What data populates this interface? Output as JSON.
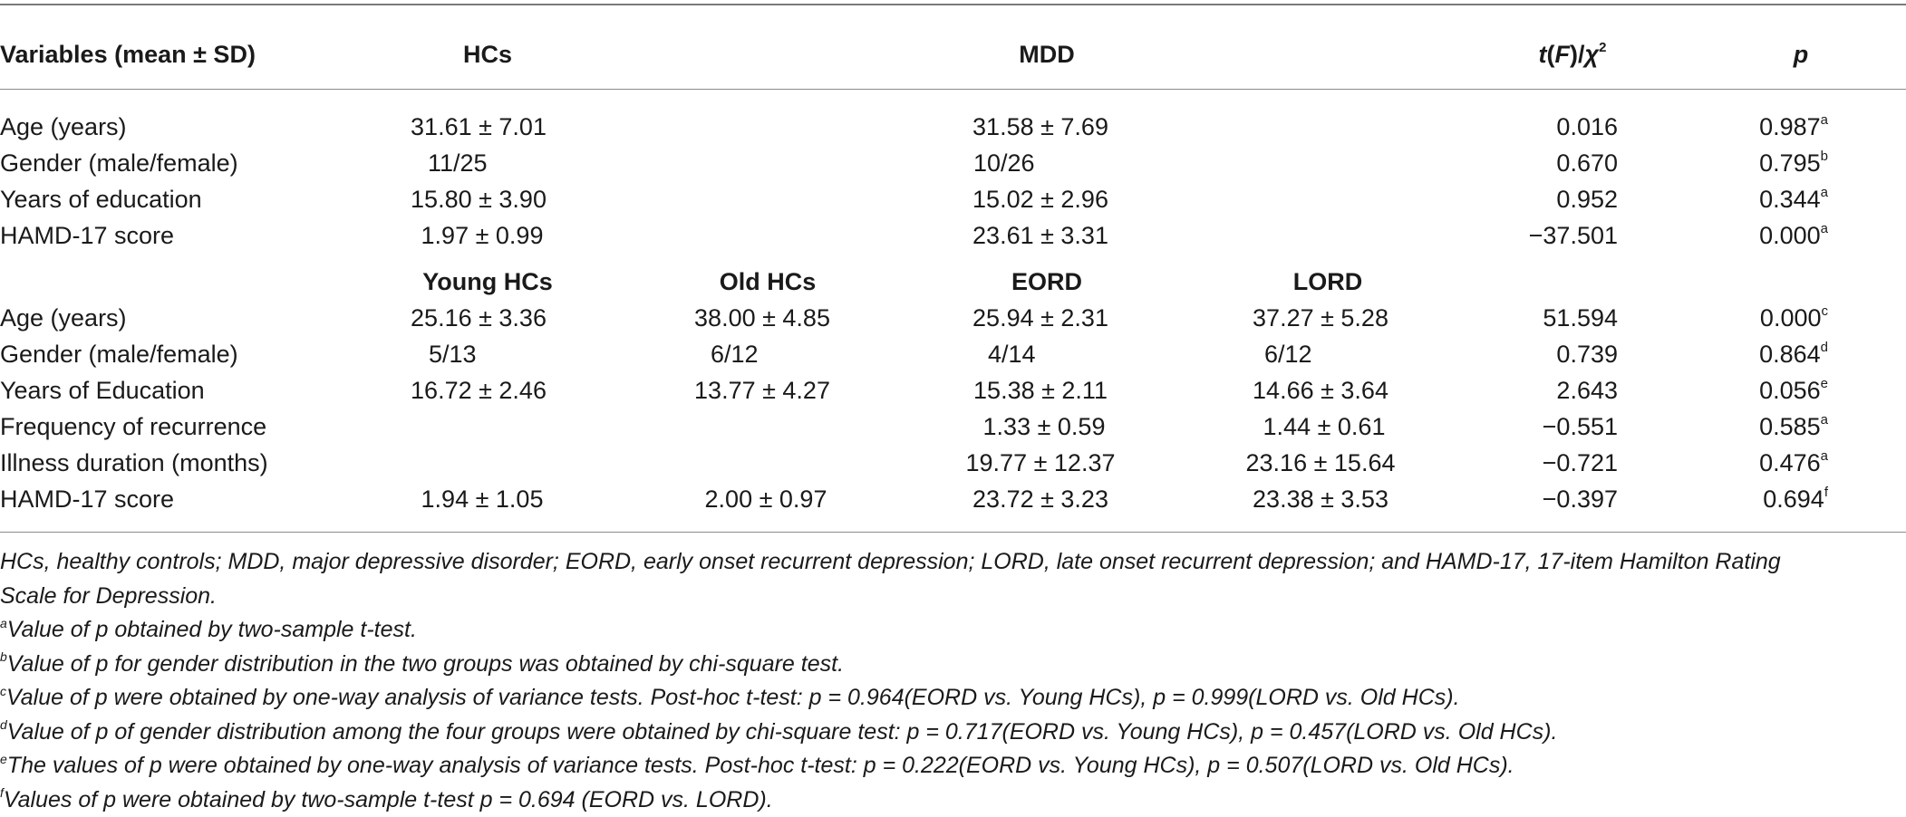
{
  "header": {
    "variables": "Variables (mean ± SD)",
    "hcs": "HCs",
    "mdd": "MDD",
    "stat_t": "t",
    "stat_F": "F",
    "stat_chi": "χ",
    "stat_chi_sup": "2",
    "p": "p"
  },
  "subheader": {
    "young_hcs": "Young HCs",
    "old_hcs": "Old HCs",
    "eord": "EORD",
    "lord": "LORD"
  },
  "section1": [
    {
      "label": "Age (years)",
      "hcs": "31.61 ± 7.01",
      "mdd": "31.58 ± 7.69",
      "stat": "0.016",
      "p": "0.987",
      "sup": "a"
    },
    {
      "label": "Gender (male/female)",
      "hcs": "11/25",
      "mdd": "10/26",
      "stat": "0.670",
      "p": "0.795",
      "sup": "b"
    },
    {
      "label": "Years of education",
      "hcs": "15.80 ± 3.90",
      "mdd": "15.02 ± 2.96",
      "stat": "0.952",
      "p": "0.344",
      "sup": "a"
    },
    {
      "label": "HAMD-17 score",
      "hcs": "1.97 ± 0.99",
      "mdd": "23.61 ± 3.31",
      "stat": "−37.501",
      "p": "0.000",
      "sup": "a"
    }
  ],
  "section2": [
    {
      "label": "Age (years)",
      "young": "25.16 ± 3.36",
      "old": "38.00 ± 4.85",
      "eord": "25.94 ± 2.31",
      "lord": "37.27 ± 5.28",
      "stat": "51.594",
      "p": "0.000",
      "sup": "c"
    },
    {
      "label": "Gender (male/female)",
      "young": "5/13",
      "old": "6/12",
      "eord": "4/14",
      "lord": "6/12",
      "stat": "0.739",
      "p": "0.864",
      "sup": "d"
    },
    {
      "label": "Years of Education",
      "young": "16.72 ± 2.46",
      "old": "13.77 ± 4.27",
      "eord": "15.38 ± 2.11",
      "lord": "14.66 ± 3.64",
      "stat": "2.643",
      "p": "0.056",
      "sup": "e"
    },
    {
      "label": "Frequency of recurrence",
      "young": "",
      "old": "",
      "eord": "1.33 ± 0.59",
      "lord": "1.44 ± 0.61",
      "stat": "−0.551",
      "p": "0.585",
      "sup": "a"
    },
    {
      "label": "Illness duration (months)",
      "young": "",
      "old": "",
      "eord": "19.77 ± 12.37",
      "lord": "23.16 ± 15.64",
      "stat": "−0.721",
      "p": "0.476",
      "sup": "a"
    },
    {
      "label": "HAMD-17 score",
      "young": "1.94 ± 1.05",
      "old": "2.00 ± 0.97",
      "eord": "23.72 ± 3.23",
      "lord": "23.38 ± 3.53",
      "stat": "−0.397",
      "p": "0.694",
      "sup": "f"
    }
  ],
  "footnotes": {
    "abbrev_line1": "HCs, healthy controls; MDD, major depressive disorder; EORD, early onset recurrent depression; LORD, late onset recurrent depression; and HAMD-17, 17-item Hamilton Rating",
    "abbrev_line2": "Scale for Depression.",
    "a": {
      "mark": "a",
      "text": "Value of p obtained by two-sample t-test."
    },
    "b": {
      "mark": "b",
      "text": "Value of p for gender distribution in the two groups was obtained by chi-square test."
    },
    "c": {
      "mark": "c",
      "text": "Value of p were obtained by one-way analysis of variance tests. Post-hoc t-test: p = 0.964(EORD vs. Young HCs), p = 0.999(LORD vs. Old HCs)."
    },
    "d": {
      "mark": "d",
      "text": "Value of p of gender distribution among the four groups were obtained by chi-square test: p = 0.717(EORD vs. Young HCs), p = 0.457(LORD vs. Old HCs)."
    },
    "e": {
      "mark": "e",
      "text": "The values of p were obtained by one-way analysis of variance tests. Post-hoc t-test: p = 0.222(EORD vs. Young HCs), p = 0.507(LORD vs. Old HCs)."
    },
    "f": {
      "mark": "f",
      "text": "Values of p were obtained by two-sample t-test p = 0.694 (EORD vs. LORD)."
    }
  }
}
